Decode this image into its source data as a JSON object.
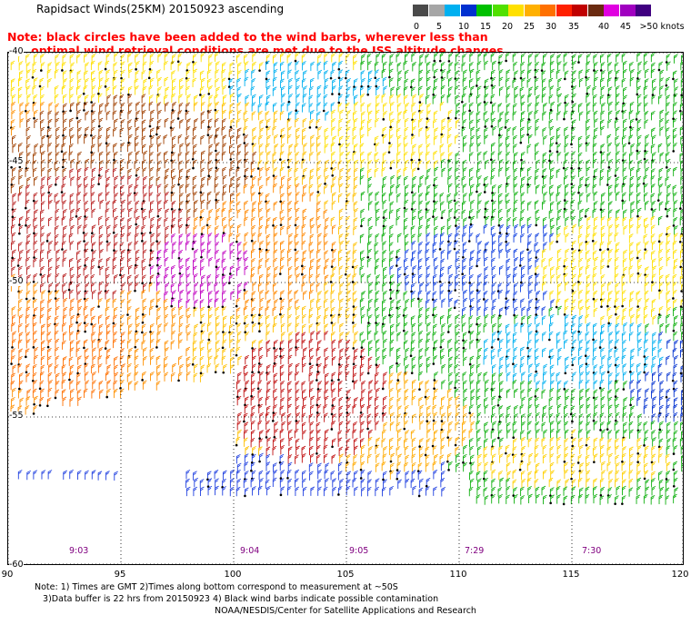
{
  "title": "Rapidsact Winds(25KM) 20150923 ascending",
  "note_line1": "Note: black circles have been added to the wind barbs, wherever less than",
  "note_line2": "      optimal wind retrieval conditions are met due to the ISS altitude changes.",
  "colorbar": {
    "labels": [
      "0",
      "5",
      "10",
      "15",
      "20",
      "25",
      "30",
      "35",
      "40",
      "45",
      ">50 knots"
    ],
    "colors": [
      "#4a4a4a",
      "#a6a6a6",
      "#00b0f0",
      "#0030d0",
      "#00c000",
      "#50e000",
      "#ffe000",
      "#ffb000",
      "#ff7000",
      "#ff2000",
      "#c00000",
      "#6a2a10",
      "#e000e0",
      "#a000c0",
      "#400080"
    ]
  },
  "map": {
    "lat_labels": [
      "-40",
      "-45",
      "-50",
      "-55",
      "-60"
    ],
    "lon_labels": [
      "90",
      "95",
      "100",
      "105",
      "110",
      "115",
      "120"
    ],
    "time_labels": [
      "9:03",
      "9:04",
      "9:05",
      "7:29",
      "7:30"
    ]
  },
  "footer_line1": "Note: 1) Times are GMT 2)Times along bottom correspond to measurement at ~50S",
  "footer_line2": "   3)Data buffer is 22 hrs from 20150923 4) Black wind barbs indicate possible contamination",
  "credit": "NOAA/NESDIS/Center for Satellite Applications and Research"
}
